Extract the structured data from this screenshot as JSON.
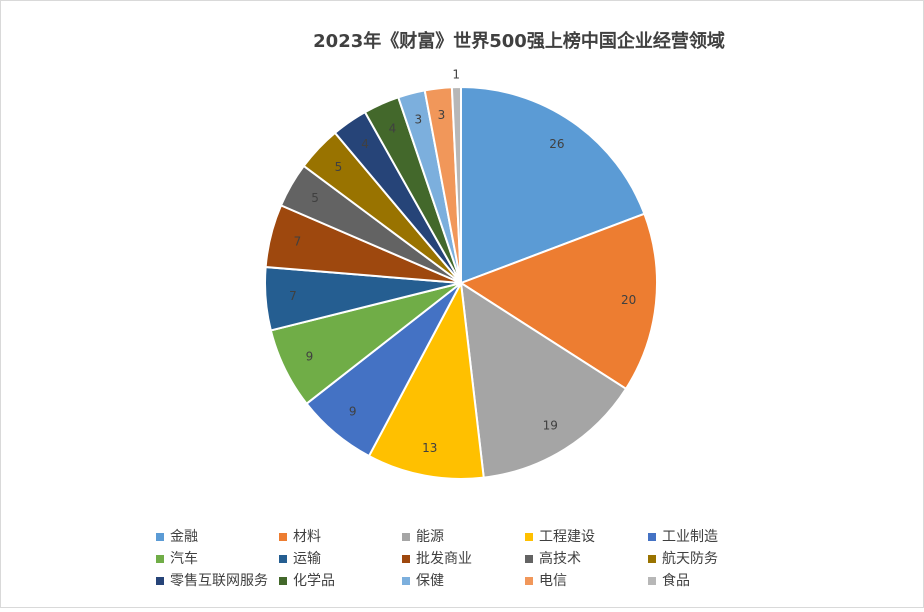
{
  "chart_data": {
    "type": "pie",
    "title": "2023年《财富》世界500强上榜中国企业经营领域",
    "categories": [
      "金融",
      "材料",
      "能源",
      "工程建设",
      "工业制造",
      "汽车",
      "运输",
      "批发商业",
      "高技术",
      "航天防务",
      "零售互联网服务",
      "化学品",
      "保健",
      "电信",
      "食品"
    ],
    "values": [
      26,
      20,
      19,
      13,
      9,
      9,
      7,
      7,
      5,
      5,
      4,
      4,
      3,
      3,
      1
    ],
    "colors": [
      "#5B9BD5",
      "#ED7D31",
      "#A5A5A5",
      "#FFC000",
      "#4472C4",
      "#70AD47",
      "#255E91",
      "#9E480E",
      "#636363",
      "#997300",
      "#264478",
      "#43682B",
      "#7CAFDD",
      "#F1975A",
      "#B7B7B7"
    ],
    "legend": "bottom"
  }
}
